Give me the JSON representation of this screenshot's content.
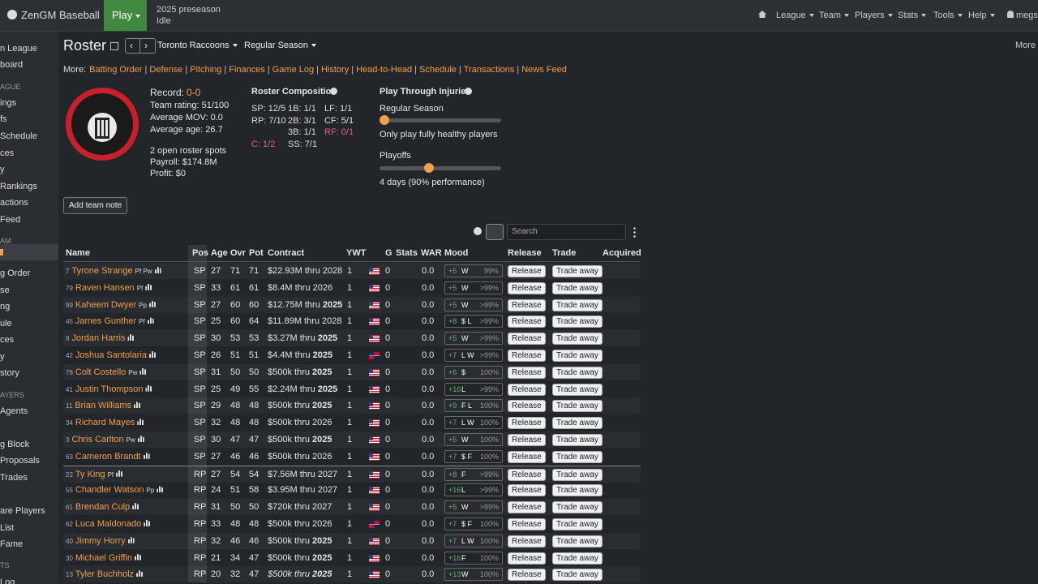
{
  "topbar": {
    "brand": "ZenGM Baseball",
    "play": "Play",
    "season": "2025 preseason",
    "status": "Idle",
    "nav": [
      "League",
      "Team",
      "Players",
      "Stats",
      "Tools",
      "Help"
    ],
    "user": "megs"
  },
  "sidebar": [
    {
      "text": "n League",
      "heading": false
    },
    {
      "text": "board",
      "heading": false
    },
    {
      "text": "AGUE",
      "heading": true
    },
    {
      "text": "ings",
      "heading": false
    },
    {
      "text": "fs",
      "heading": false
    },
    {
      "text": "Schedule",
      "heading": false
    },
    {
      "text": "ces",
      "heading": false
    },
    {
      "text": "y",
      "heading": false
    },
    {
      "text": "Rankings",
      "heading": false
    },
    {
      "text": "actions",
      "heading": false
    },
    {
      "text": "Feed",
      "heading": false
    },
    {
      "text": "AM",
      "heading": true
    },
    {
      "text": "g Order",
      "heading": false
    },
    {
      "text": "se",
      "heading": false
    },
    {
      "text": "ng",
      "heading": false
    },
    {
      "text": "ule",
      "heading": false
    },
    {
      "text": "ces",
      "heading": false
    },
    {
      "text": "y",
      "heading": false
    },
    {
      "text": "story",
      "heading": false
    },
    {
      "text": "AYERS",
      "heading": true
    },
    {
      "text": "Agents",
      "heading": false
    },
    {
      "text": "g Block",
      "heading": false
    },
    {
      "text": "Proposals",
      "heading": false
    },
    {
      "text": "Trades",
      "heading": false
    },
    {
      "text": "are Players",
      "heading": false
    },
    {
      "text": "List",
      "heading": false
    },
    {
      "text": "Fame",
      "heading": false
    },
    {
      "text": "TS",
      "heading": true
    },
    {
      "text": "Log",
      "heading": false
    }
  ],
  "header": {
    "title": "Roster",
    "team": "Toronto Raccoons",
    "season": "Regular Season",
    "more": "More"
  },
  "more_links": {
    "label": "More:",
    "links": [
      "Batting Order",
      "Defense",
      "Pitching",
      "Finances",
      "Game Log",
      "History",
      "Head-to-Head",
      "Schedule",
      "Transactions",
      "News Feed"
    ]
  },
  "team_info": {
    "record_label": "Record:",
    "record": "0-0",
    "lines": [
      "Team rating: 51/100",
      "Average MOV: 0.0",
      "Average age: 26.7"
    ],
    "roster_lines": [
      "2 open roster spots",
      "Payroll: $174.8M",
      "Profit: $0"
    ]
  },
  "composition": {
    "title": "Roster Composition",
    "items": [
      {
        "text": "SP: 12/5",
        "short": false
      },
      {
        "text": "RP: 7/10",
        "short": false
      },
      {
        "text": "C: 1/2",
        "short": true
      },
      {
        "text": "1B: 1/1",
        "short": false
      },
      {
        "text": "2B: 3/1",
        "short": false
      },
      {
        "text": "3B: 1/1",
        "short": false
      },
      {
        "text": "SS: 7/1",
        "short": false
      },
      {
        "text": "LF: 1/1",
        "short": false
      },
      {
        "text": "CF: 5/1",
        "short": false
      },
      {
        "text": "RF: 0/1",
        "short": true
      }
    ]
  },
  "injuries": {
    "title": "Play Through Injuries",
    "regular_label": "Regular Season",
    "regular_text": "Only play fully healthy players",
    "playoffs_label": "Playoffs",
    "playoffs_text": "4 days (90% performance)"
  },
  "add_note": "Add team note",
  "search": "Search",
  "table": {
    "columns": [
      "Name",
      "Pos",
      "Age",
      "Ovr",
      "Pot",
      "Contract",
      "YWT",
      "G",
      "Stats",
      "WAR",
      "Mood",
      "Release",
      "Trade",
      "Acquired"
    ],
    "release": "Release",
    "trade": "Trade away",
    "rows": [
      {
        "num": 7,
        "name": "Tyrone Strange",
        "skills": "Pf Pw",
        "pos": "SP",
        "age": 27,
        "ovr": 71,
        "pot": 71,
        "contract": "$22.93M thru",
        "exp": 2028,
        "ywt": 1,
        "flag": "us",
        "g": 0,
        "war": "0.0",
        "mood": "+5",
        "traits": "W",
        "pct": "99%"
      },
      {
        "num": 79,
        "name": "Raven Hansen",
        "skills": "Pf",
        "pos": "SP",
        "age": 33,
        "ovr": 61,
        "pot": 61,
        "contract": "$8.4M thru",
        "exp": 2026,
        "ywt": 1,
        "flag": "us",
        "g": 0,
        "war": "0.0",
        "mood": "+5",
        "traits": "W",
        "pct": ">99%"
      },
      {
        "num": 99,
        "name": "Kaheem Dwyer",
        "skills": "Pp",
        "pos": "SP",
        "age": 27,
        "ovr": 60,
        "pot": 60,
        "contract": "$12.75M thru",
        "exp": 2025,
        "ywt": 1,
        "flag": "us",
        "g": 0,
        "war": "0.0",
        "mood": "+5",
        "traits": "W",
        "pct": ">99%"
      },
      {
        "num": 45,
        "name": "James Gunther",
        "skills": "Pf",
        "pos": "SP",
        "age": 25,
        "ovr": 60,
        "pot": 64,
        "contract": "$11.89M thru",
        "exp": 2028,
        "ywt": 1,
        "flag": "us",
        "g": 0,
        "war": "0.0",
        "mood": "+8",
        "traits": "$ L",
        "pct": ">99%"
      },
      {
        "num": 9,
        "name": "Jordan Harris",
        "skills": null,
        "pos": "SP",
        "age": 30,
        "ovr": 53,
        "pot": 53,
        "contract": "$3.27M thru",
        "exp": 2025,
        "ywt": 1,
        "flag": "us",
        "g": 0,
        "war": "0.0",
        "mood": "+5",
        "traits": "W",
        "pct": ">99%"
      },
      {
        "num": 42,
        "name": "Joshua Santolaria",
        "skills": null,
        "pos": "SP",
        "age": 26,
        "ovr": 51,
        "pot": 51,
        "contract": "$4.4M thru",
        "exp": 2025,
        "ywt": 1,
        "flag": "do",
        "g": 0,
        "war": "0.0",
        "mood": "+7",
        "traits": "L W",
        "pct": ">99%"
      },
      {
        "num": 78,
        "name": "Colt Costello",
        "skills": "Pw",
        "pos": "SP",
        "age": 31,
        "ovr": 50,
        "pot": 50,
        "contract": "$500k thru",
        "exp": 2025,
        "ywt": 1,
        "flag": "us",
        "g": 0,
        "war": "0.0",
        "mood": "+6",
        "traits": "$",
        "pct": "100%"
      },
      {
        "num": 41,
        "name": "Justin Thompson",
        "skills": null,
        "pos": "SP",
        "age": 25,
        "ovr": 49,
        "pot": 55,
        "contract": "$2.24M thru",
        "exp": 2025,
        "ywt": 1,
        "flag": "us",
        "g": 0,
        "war": "0.0",
        "mood": "+16",
        "traits": "L",
        "pct": ">99%"
      },
      {
        "num": 11,
        "name": "Brian Williams",
        "skills": null,
        "pos": "SP",
        "age": 29,
        "ovr": 48,
        "pot": 48,
        "contract": "$500k thru",
        "exp": 2025,
        "ywt": 1,
        "flag": "us",
        "g": 0,
        "war": "0.0",
        "mood": "+9",
        "traits": "F L",
        "pct": "100%"
      },
      {
        "num": 34,
        "name": "Richard Mayes",
        "skills": null,
        "pos": "SP",
        "age": 32,
        "ovr": 48,
        "pot": 48,
        "contract": "$500k thru",
        "exp": 2026,
        "ywt": 1,
        "flag": "us",
        "g": 0,
        "war": "0.0",
        "mood": "+7",
        "traits": "L W",
        "pct": "100%"
      },
      {
        "num": 3,
        "name": "Chris Carlton",
        "skills": "Pw",
        "pos": "SP",
        "age": 30,
        "ovr": 47,
        "pot": 47,
        "contract": "$500k thru",
        "exp": 2025,
        "ywt": 1,
        "flag": "us",
        "g": 0,
        "war": "0.0",
        "mood": "+5",
        "traits": "W",
        "pct": "100%"
      },
      {
        "num": 63,
        "name": "Cameron Brandt",
        "skills": null,
        "pos": "SP",
        "age": 27,
        "ovr": 46,
        "pot": 46,
        "contract": "$500k thru",
        "exp": 2026,
        "ywt": 1,
        "flag": "us",
        "g": 0,
        "war": "0.0",
        "mood": "+7",
        "traits": "$ F",
        "pct": "100%"
      },
      {
        "num": 22,
        "name": "Ty King",
        "skills": "Pf",
        "pos": "RP",
        "age": 27,
        "ovr": 54,
        "pot": 54,
        "contract": "$7.56M thru",
        "exp": 2027,
        "ywt": 1,
        "flag": "us",
        "g": 0,
        "war": "0.0",
        "mood": "+8",
        "traits": "F",
        "pct": ">99%"
      },
      {
        "num": 55,
        "name": "Chandler Watson",
        "skills": "Pp",
        "pos": "RP",
        "age": 24,
        "ovr": 51,
        "pot": 58,
        "contract": "$3.95M thru",
        "exp": 2027,
        "ywt": 1,
        "flag": "us",
        "g": 0,
        "war": "0.0",
        "mood": "+16",
        "traits": "L",
        "pct": ">99%"
      },
      {
        "num": 61,
        "name": "Brendan Culp",
        "skills": null,
        "pos": "RP",
        "age": 31,
        "ovr": 50,
        "pot": 50,
        "contract": "$720k thru",
        "exp": 2027,
        "ywt": 1,
        "flag": "us",
        "g": 0,
        "war": "0.0",
        "mood": "+5",
        "traits": "W",
        "pct": ">99%"
      },
      {
        "num": 62,
        "name": "Luca Maldonado",
        "skills": null,
        "pos": "RP",
        "age": 33,
        "ovr": 48,
        "pot": 48,
        "contract": "$500k thru",
        "exp": 2026,
        "ywt": 1,
        "flag": "do",
        "g": 0,
        "war": "0.0",
        "mood": "+7",
        "traits": "$ F",
        "pct": "100%"
      },
      {
        "num": 40,
        "name": "Jimmy Horry",
        "skills": null,
        "pos": "RP",
        "age": 32,
        "ovr": 46,
        "pot": 46,
        "contract": "$500k thru",
        "exp": 2025,
        "ywt": 1,
        "flag": "us",
        "g": 0,
        "war": "0.0",
        "mood": "+7",
        "traits": "L W",
        "pct": "100%"
      },
      {
        "num": 30,
        "name": "Michael Griffin",
        "skills": null,
        "pos": "RP",
        "age": 21,
        "ovr": 34,
        "pot": 47,
        "contract": "$500k thru",
        "exp": 2025,
        "ywt": 1,
        "flag": "us",
        "g": 0,
        "war": "0.0",
        "mood": "+16",
        "traits": "F",
        "pct": "100%"
      },
      {
        "num": 13,
        "name": "Tyler Buchholz",
        "skills": null,
        "pos": "RP",
        "age": 20,
        "ovr": 32,
        "pot": 47,
        "contract": "$500k thru",
        "exp": 2025,
        "ywt": 1,
        "flag": "us",
        "g": 0,
        "war": "0.0",
        "mood": "+13",
        "traits": "W",
        "pct": "100%",
        "italic": true
      }
    ]
  }
}
